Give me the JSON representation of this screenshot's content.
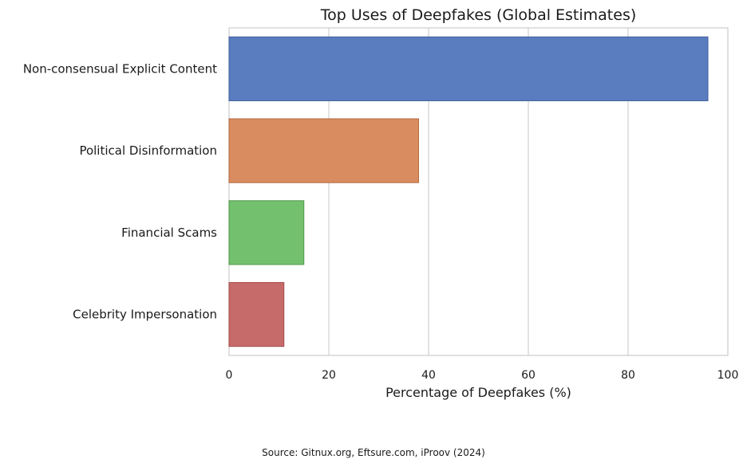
{
  "chart_data": {
    "type": "bar",
    "orientation": "horizontal",
    "title": "Top Uses of Deepfakes (Global Estimates)",
    "xlabel": "Percentage of Deepfakes (%)",
    "ylabel": "",
    "categories": [
      "Non-consensual Explicit Content",
      "Political Disinformation",
      "Financial Scams",
      "Celebrity Impersonation"
    ],
    "values": [
      96,
      38,
      15,
      11
    ],
    "colors": [
      "#5a7dc0",
      "#d98c5f",
      "#73c06e",
      "#c76a6a"
    ],
    "edge_colors": [
      "#3f5e9c",
      "#b36a40",
      "#4f9a4b",
      "#a34a4a"
    ],
    "xlim": [
      0,
      100
    ],
    "xticks": [
      "0",
      "20",
      "40",
      "60",
      "80",
      "100"
    ],
    "grid": "vertical",
    "legend": "none",
    "source": "Source: Gitnux.org, Eftsure.com, iProov (2024)"
  }
}
